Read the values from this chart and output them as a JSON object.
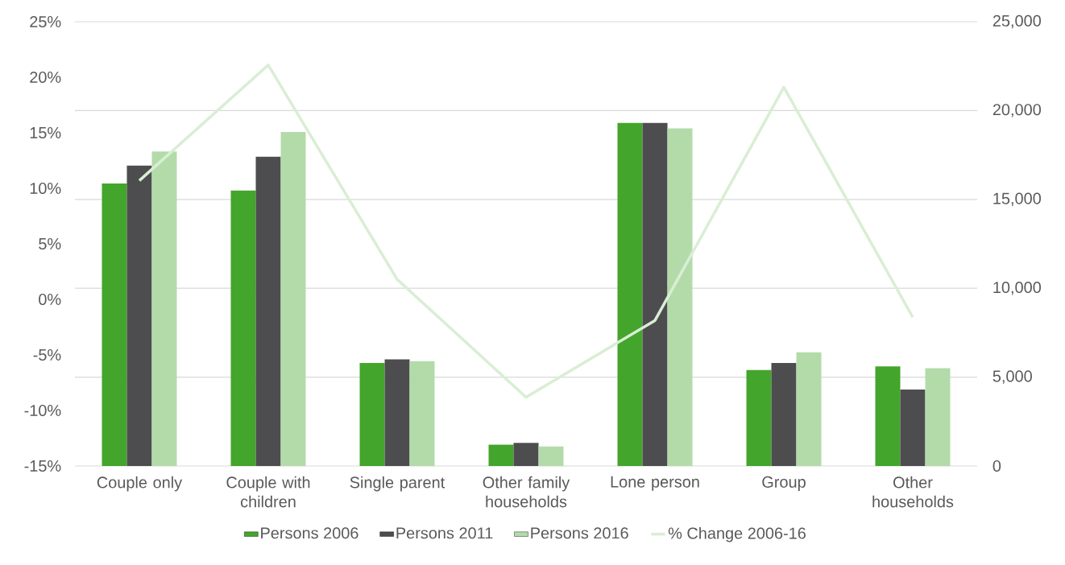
{
  "chart_data": {
    "type": "bar",
    "categories": [
      "Couple only",
      "Couple with children",
      "Single parent",
      "Other family households",
      "Lone person",
      "Group",
      "Other households"
    ],
    "series": [
      {
        "name": "Persons 2006",
        "axis": "y2",
        "color": "#43a52b",
        "values": [
          15900,
          15500,
          5800,
          1200,
          19300,
          5400,
          5600
        ]
      },
      {
        "name": "Persons 2011",
        "axis": "y2",
        "color": "#4d4d4f",
        "values": [
          16900,
          17400,
          6000,
          1300,
          19300,
          5800,
          4300
        ]
      },
      {
        "name": "Persons 2016",
        "axis": "y2",
        "color": "#b3dbaa",
        "values": [
          17700,
          18800,
          5900,
          1100,
          19000,
          6400,
          5500
        ]
      },
      {
        "name": "% Change 2006-16",
        "type": "line",
        "axis": "y",
        "color": "#d9eed4",
        "values": [
          10.7,
          21.1,
          1.8,
          -8.8,
          -1.9,
          19.1,
          -1.6
        ]
      }
    ],
    "ylim": [
      -15,
      25
    ],
    "yticks": [
      {
        "value": -15,
        "label": "-15%"
      },
      {
        "value": -10,
        "label": "-10%"
      },
      {
        "value": -5,
        "label": "-5%"
      },
      {
        "value": 0,
        "label": "0%"
      },
      {
        "value": 5,
        "label": "5%"
      },
      {
        "value": 10,
        "label": "10%"
      },
      {
        "value": 15,
        "label": "15%"
      },
      {
        "value": 20,
        "label": "20%"
      },
      {
        "value": 25,
        "label": "25%"
      }
    ],
    "y2lim": [
      0,
      25000
    ],
    "y2ticks": [
      0,
      {
        "value": 5000,
        "label": "5,000"
      },
      {
        "value": 10000,
        "label": "10,000"
      },
      {
        "value": 15000,
        "label": "15,000"
      },
      {
        "value": 20000,
        "label": "20,000"
      },
      {
        "value": 25000,
        "label": "25,000"
      }
    ],
    "grid": "y",
    "legend": "bottom"
  }
}
